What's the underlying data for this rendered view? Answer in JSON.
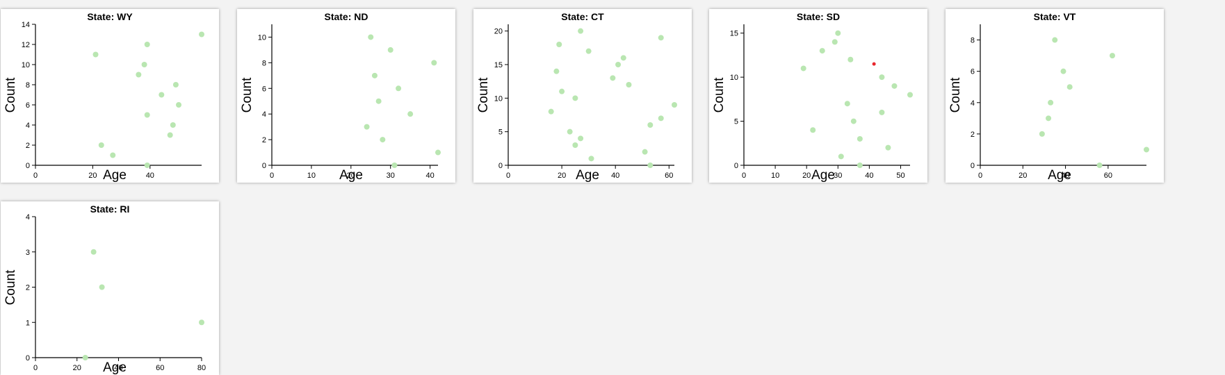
{
  "colors": {
    "point": "#b9e6b1",
    "highlight": "#e8262d",
    "axis": "#000000"
  },
  "chart_data": [
    {
      "type": "scatter",
      "title": "State: WY",
      "xlabel": "Age",
      "ylabel": "Count",
      "xlim": [
        0,
        58
      ],
      "ylim": [
        0,
        14
      ],
      "xticks": [
        0,
        20,
        40
      ],
      "yticks": [
        0,
        2,
        4,
        6,
        8,
        10,
        12,
        14
      ],
      "points": [
        [
          21,
          11
        ],
        [
          23,
          2
        ],
        [
          27,
          1
        ],
        [
          36,
          9
        ],
        [
          38,
          10
        ],
        [
          39,
          12
        ],
        [
          39,
          5
        ],
        [
          39,
          0
        ],
        [
          44,
          7
        ],
        [
          47,
          3
        ],
        [
          48,
          4
        ],
        [
          49,
          8
        ],
        [
          50,
          6
        ],
        [
          58,
          13
        ]
      ]
    },
    {
      "type": "scatter",
      "title": "State: ND",
      "xlabel": "Age",
      "ylabel": "Count",
      "xlim": [
        0,
        42
      ],
      "ylim": [
        0,
        11
      ],
      "xticks": [
        0,
        10,
        20,
        30,
        40
      ],
      "yticks": [
        0,
        2,
        4,
        6,
        8,
        10
      ],
      "points": [
        [
          24,
          3
        ],
        [
          25,
          10
        ],
        [
          26,
          7
        ],
        [
          27,
          5
        ],
        [
          28,
          2
        ],
        [
          30,
          9
        ],
        [
          31,
          0
        ],
        [
          32,
          6
        ],
        [
          35,
          4
        ],
        [
          41,
          8
        ],
        [
          42,
          1
        ]
      ]
    },
    {
      "type": "scatter",
      "title": "State: CT",
      "xlabel": "Age",
      "ylabel": "Count",
      "xlim": [
        0,
        62
      ],
      "ylim": [
        0,
        21
      ],
      "xticks": [
        0,
        20,
        40,
        60
      ],
      "yticks": [
        0,
        5,
        10,
        15,
        20
      ],
      "points": [
        [
          16,
          8
        ],
        [
          18,
          14
        ],
        [
          19,
          18
        ],
        [
          20,
          11
        ],
        [
          23,
          5
        ],
        [
          25,
          10
        ],
        [
          25,
          3
        ],
        [
          27,
          4
        ],
        [
          27,
          20
        ],
        [
          30,
          17
        ],
        [
          31,
          1
        ],
        [
          39,
          13
        ],
        [
          41,
          15
        ],
        [
          43,
          16
        ],
        [
          45,
          12
        ],
        [
          51,
          2
        ],
        [
          53,
          6
        ],
        [
          53,
          0
        ],
        [
          57,
          7
        ],
        [
          57,
          19
        ],
        [
          62,
          9
        ]
      ]
    },
    {
      "type": "scatter",
      "title": "State: SD",
      "xlabel": "Age",
      "ylabel": "Count",
      "xlim": [
        0,
        53
      ],
      "ylim": [
        0,
        16
      ],
      "xticks": [
        0,
        10,
        20,
        30,
        40,
        50
      ],
      "yticks": [
        0,
        5,
        10,
        15
      ],
      "points": [
        [
          19,
          11
        ],
        [
          22,
          4
        ],
        [
          25,
          13
        ],
        [
          29,
          14
        ],
        [
          30,
          15
        ],
        [
          31,
          1
        ],
        [
          33,
          7
        ],
        [
          34,
          12
        ],
        [
          35,
          5
        ],
        [
          37,
          3
        ],
        [
          37,
          0
        ],
        [
          44,
          10
        ],
        [
          44,
          6
        ],
        [
          46,
          2
        ],
        [
          48,
          9
        ],
        [
          53,
          8
        ]
      ],
      "highlight": [
        41.5,
        11.5
      ]
    },
    {
      "type": "scatter",
      "title": "State: VT",
      "xlabel": "Age",
      "ylabel": "Count",
      "xlim": [
        0,
        78
      ],
      "ylim": [
        0,
        9
      ],
      "xticks": [
        0,
        20,
        40,
        60
      ],
      "yticks": [
        0,
        2,
        4,
        6,
        8
      ],
      "points": [
        [
          29,
          2
        ],
        [
          32,
          3
        ],
        [
          33,
          4
        ],
        [
          35,
          8
        ],
        [
          39,
          6
        ],
        [
          42,
          5
        ],
        [
          56,
          0
        ],
        [
          62,
          7
        ],
        [
          78,
          1
        ]
      ]
    },
    {
      "type": "scatter",
      "title": "State: RI",
      "xlabel": "Age",
      "ylabel": "Count",
      "xlim": [
        0,
        80
      ],
      "ylim": [
        0,
        4
      ],
      "xticks": [
        0,
        20,
        40,
        60,
        80
      ],
      "yticks": [
        0,
        1,
        2,
        3,
        4
      ],
      "points": [
        [
          24,
          0
        ],
        [
          28,
          3
        ],
        [
          32,
          2
        ],
        [
          80,
          1
        ]
      ]
    }
  ]
}
